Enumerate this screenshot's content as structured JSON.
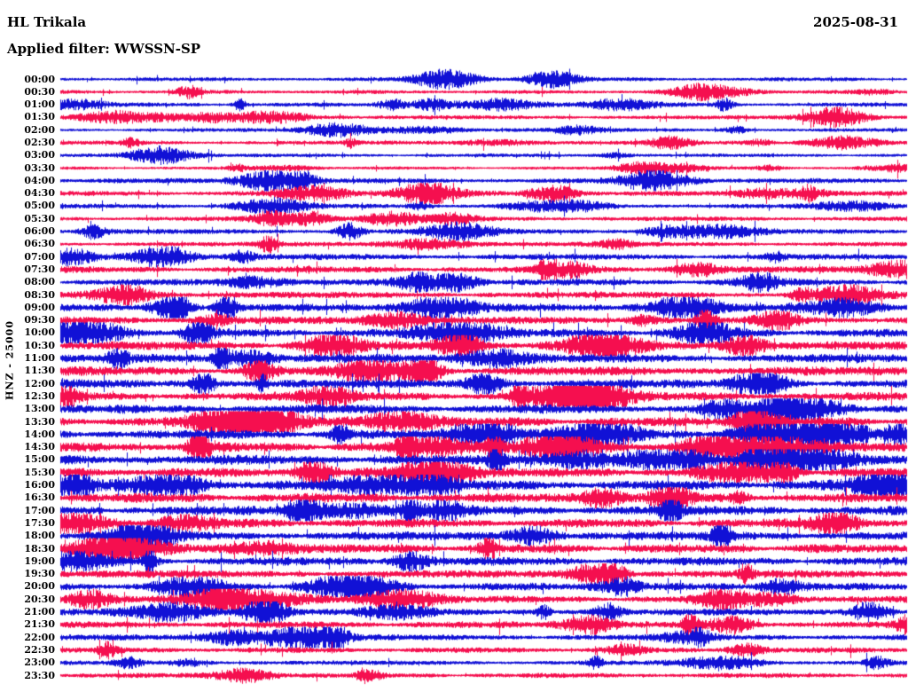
{
  "header": {
    "station": "HL Trikala",
    "date": "2025-08-31",
    "filter_label": "Applied filter: WWSSN-SP"
  },
  "y_axis_label": "HNZ - 25000",
  "colors": {
    "blue": "#1111d6",
    "red": "#f50f4f",
    "text": "#000000",
    "background": "#ffffff"
  },
  "chart_data": {
    "type": "line",
    "subtype": "helicorder-seismogram",
    "title": "HL Trikala",
    "date": "2025-08-31",
    "filter": "WWSSN-SP",
    "channel_scale_label": "HNZ - 25000",
    "row_interval_minutes": 30,
    "n_rows": 48,
    "x_range_minutes": [
      0,
      30
    ],
    "grid": false,
    "legend": "rows alternate: HH:00 traces blue, HH:30 traces red; amplitude is relative trace half-height in px estimated from image",
    "rows": [
      {
        "time": "00:00",
        "color": "blue",
        "amp": 1.4
      },
      {
        "time": "00:30",
        "color": "red",
        "amp": 1.4
      },
      {
        "time": "01:00",
        "color": "blue",
        "amp": 1.5
      },
      {
        "time": "01:30",
        "color": "red",
        "amp": 1.5
      },
      {
        "time": "02:00",
        "color": "blue",
        "amp": 1.4
      },
      {
        "time": "02:30",
        "color": "red",
        "amp": 1.5
      },
      {
        "time": "03:00",
        "color": "blue",
        "amp": 1.3
      },
      {
        "time": "03:30",
        "color": "red",
        "amp": 1.1
      },
      {
        "time": "04:00",
        "color": "blue",
        "amp": 1.9
      },
      {
        "time": "04:30",
        "color": "red",
        "amp": 1.9
      },
      {
        "time": "05:00",
        "color": "blue",
        "amp": 1.7
      },
      {
        "time": "05:30",
        "color": "red",
        "amp": 1.7
      },
      {
        "time": "06:00",
        "color": "blue",
        "amp": 1.9
      },
      {
        "time": "06:30",
        "color": "red",
        "amp": 1.8
      },
      {
        "time": "07:00",
        "color": "blue",
        "amp": 2.3
      },
      {
        "time": "07:30",
        "color": "red",
        "amp": 2.5
      },
      {
        "time": "08:00",
        "color": "blue",
        "amp": 2.5
      },
      {
        "time": "08:30",
        "color": "red",
        "amp": 2.5
      },
      {
        "time": "09:00",
        "color": "blue",
        "amp": 2.8
      },
      {
        "time": "09:30",
        "color": "red",
        "amp": 2.9
      },
      {
        "time": "10:00",
        "color": "blue",
        "amp": 3.2
      },
      {
        "time": "10:30",
        "color": "red",
        "amp": 3.4
      },
      {
        "time": "11:00",
        "color": "blue",
        "amp": 3.4
      },
      {
        "time": "11:30",
        "color": "red",
        "amp": 3.6
      },
      {
        "time": "12:00",
        "color": "blue",
        "amp": 3.4
      },
      {
        "time": "12:30",
        "color": "red",
        "amp": 3.7
      },
      {
        "time": "13:00",
        "color": "blue",
        "amp": 3.5
      },
      {
        "time": "13:30",
        "color": "red",
        "amp": 3.6
      },
      {
        "time": "14:00",
        "color": "blue",
        "amp": 3.7
      },
      {
        "time": "14:30",
        "color": "red",
        "amp": 3.7
      },
      {
        "time": "15:00",
        "color": "blue",
        "amp": 3.9
      },
      {
        "time": "15:30",
        "color": "red",
        "amp": 3.7
      },
      {
        "time": "16:00",
        "color": "blue",
        "amp": 3.9
      },
      {
        "time": "16:30",
        "color": "red",
        "amp": 3.7
      },
      {
        "time": "17:00",
        "color": "blue",
        "amp": 3.7
      },
      {
        "time": "17:30",
        "color": "red",
        "amp": 3.5
      },
      {
        "time": "18:00",
        "color": "blue",
        "amp": 3.5
      },
      {
        "time": "18:30",
        "color": "red",
        "amp": 3.5
      },
      {
        "time": "19:00",
        "color": "blue",
        "amp": 3.3
      },
      {
        "time": "19:30",
        "color": "red",
        "amp": 3.0
      },
      {
        "time": "20:00",
        "color": "blue",
        "amp": 2.9
      },
      {
        "time": "20:30",
        "color": "red",
        "amp": 2.7
      },
      {
        "time": "21:00",
        "color": "blue",
        "amp": 2.6
      },
      {
        "time": "21:30",
        "color": "red",
        "amp": 2.6
      },
      {
        "time": "22:00",
        "color": "blue",
        "amp": 2.3
      },
      {
        "time": "22:30",
        "color": "red",
        "amp": 2.1
      },
      {
        "time": "23:00",
        "color": "blue",
        "amp": 1.7
      },
      {
        "time": "23:30",
        "color": "red",
        "amp": 1.9
      }
    ]
  }
}
